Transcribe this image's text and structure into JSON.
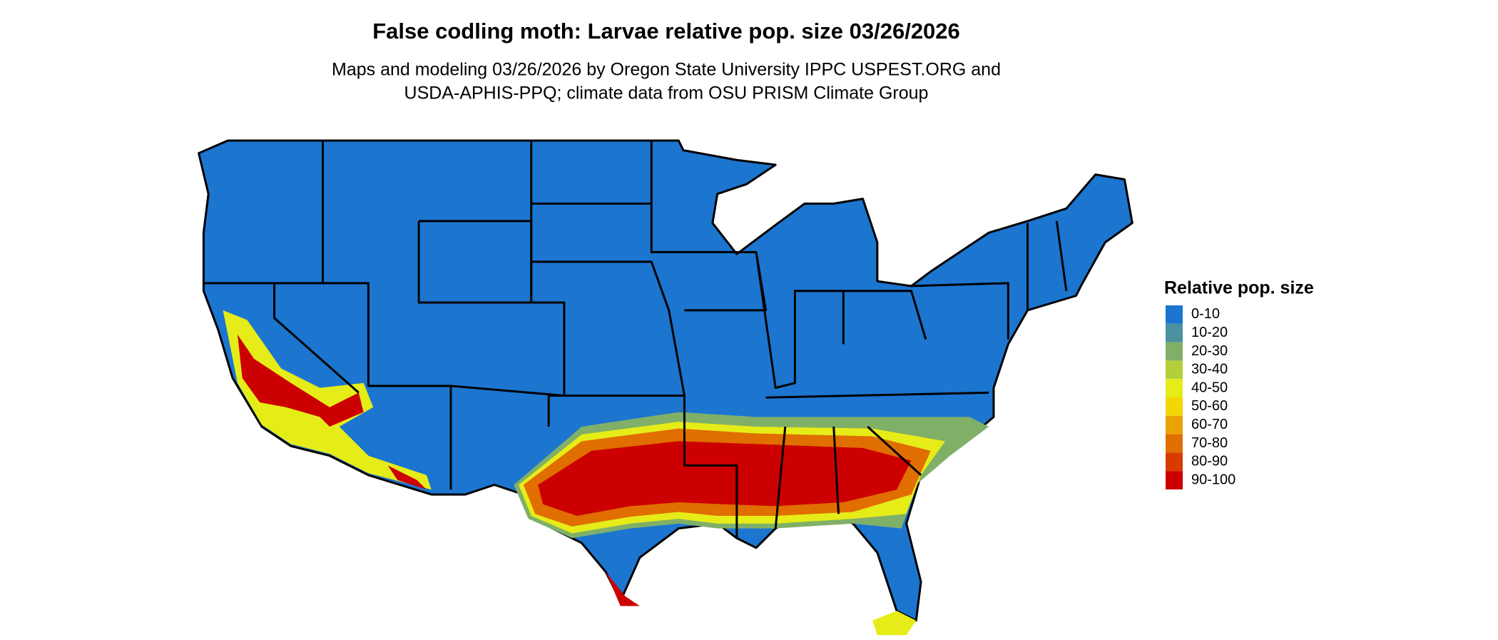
{
  "title": "False codling moth: Larvae relative pop. size 03/26/2026",
  "subtitle_lines": [
    "Maps and modeling 03/26/2026 by Oregon State University IPPC USPEST.ORG and",
    "USDA-APHIS-PPQ; climate data from OSU PRISM Climate Group"
  ],
  "legend": {
    "title": "Relative pop. size",
    "items": [
      {
        "label": "0-10",
        "color": "#1c75cf"
      },
      {
        "label": "10-20",
        "color": "#4b91a0"
      },
      {
        "label": "20-30",
        "color": "#80b068"
      },
      {
        "label": "30-40",
        "color": "#b3d03a"
      },
      {
        "label": "40-50",
        "color": "#e6ec18"
      },
      {
        "label": "50-60",
        "color": "#f4d600"
      },
      {
        "label": "60-70",
        "color": "#eba300"
      },
      {
        "label": "70-80",
        "color": "#e06e00"
      },
      {
        "label": "80-90",
        "color": "#d83a00"
      },
      {
        "label": "90-100",
        "color": "#cc0000"
      }
    ]
  }
}
